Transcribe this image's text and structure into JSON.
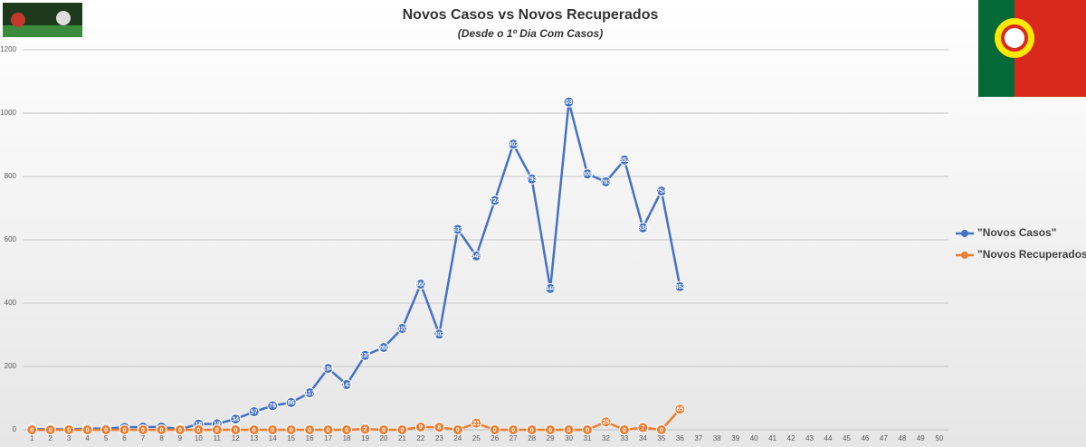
{
  "chart_data": {
    "type": "line",
    "title": "Novos Casos vs Novos Recuperados",
    "subtitle": "(Desde o 1º Dia Com Casos)",
    "x": [
      1,
      2,
      3,
      4,
      5,
      6,
      7,
      8,
      9,
      10,
      11,
      12,
      13,
      14,
      15,
      16,
      17,
      18,
      19,
      20,
      21,
      22,
      23,
      24,
      25,
      26,
      27,
      28,
      29,
      30,
      31,
      32,
      33,
      34,
      35,
      36
    ],
    "series": [
      {
        "name": "\"Novos Casos\"",
        "color": "#4472c4",
        "values": [
          2,
          2,
          1,
          4,
          4,
          8,
          9,
          9,
          2,
          18,
          19,
          34,
          57,
          76,
          86,
          117,
          194,
          143,
          235,
          260,
          320,
          460,
          302,
          633,
          549,
          724,
          902,
          792,
          446,
          1035,
          808,
          783,
          852,
          638,
          754,
          452
        ]
      },
      {
        "name": "\"Novos Recuperados\"",
        "color": "#ed7d31",
        "values": [
          0,
          0,
          0,
          0,
          0,
          0,
          0,
          0,
          0,
          0,
          0,
          0,
          0,
          0,
          0,
          0,
          0,
          0,
          2,
          0,
          0,
          9,
          8,
          0,
          21,
          0,
          0,
          0,
          0,
          0,
          0,
          25,
          0,
          7,
          0,
          65
        ]
      }
    ],
    "xlim": [
      0.5,
      50.5
    ],
    "xticks": [
      1,
      2,
      3,
      4,
      5,
      6,
      7,
      8,
      9,
      10,
      11,
      12,
      13,
      14,
      15,
      16,
      17,
      18,
      19,
      20,
      21,
      22,
      23,
      24,
      25,
      26,
      27,
      28,
      29,
      30,
      31,
      32,
      33,
      34,
      35,
      36,
      37,
      38,
      39,
      40,
      41,
      42,
      43,
      44,
      45,
      46,
      47,
      48,
      49,
      50
    ],
    "ylim": [
      0,
      1200
    ],
    "yticks": [
      0,
      200,
      400,
      600,
      800,
      1000,
      1200
    ],
    "grid": true,
    "legend": "right"
  }
}
